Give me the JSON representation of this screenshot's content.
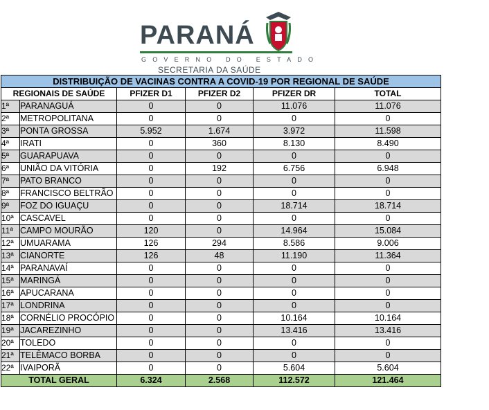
{
  "header": {
    "logo_word": "PARANÁ",
    "logo_gov": "GOVERNO DO ESTADO",
    "logo_secretaria": "SECRETARIA DA SAÚDE"
  },
  "table": {
    "title": "DISTRIBUIÇÃO DE VACINAS CONTRA A COVID-19 POR REGIONAL DE SAÚDE",
    "columns": [
      "REGIONAIS DE SAÚDE",
      "PFIZER D1",
      "PFIZER D2",
      "PFIZER DR",
      "TOTAL"
    ],
    "rows": [
      {
        "ord": "1ª",
        "name": "PARANAGUÁ",
        "d1": "0",
        "d2": "0",
        "dr": "11.076",
        "total": "11.076"
      },
      {
        "ord": "2ª",
        "name": "METROPOLITANA",
        "d1": "0",
        "d2": "0",
        "dr": "0",
        "total": "0"
      },
      {
        "ord": "3ª",
        "name": "PONTA GROSSA",
        "d1": "5.952",
        "d2": "1.674",
        "dr": "3.972",
        "total": "11.598"
      },
      {
        "ord": "4ª",
        "name": "IRATI",
        "d1": "0",
        "d2": "360",
        "dr": "8.130",
        "total": "8.490"
      },
      {
        "ord": "5ª",
        "name": "GUARAPUAVA",
        "d1": "0",
        "d2": "0",
        "dr": "0",
        "total": "0"
      },
      {
        "ord": "6ª",
        "name": "UNIÃO DA VITÓRIA",
        "d1": "0",
        "d2": "192",
        "dr": "6.756",
        "total": "6.948"
      },
      {
        "ord": "7ª",
        "name": "PATO BRANCO",
        "d1": "0",
        "d2": "0",
        "dr": "0",
        "total": "0"
      },
      {
        "ord": "8ª",
        "name": "FRANCISCO BELTRÃO",
        "d1": "0",
        "d2": "0",
        "dr": "0",
        "total": "0"
      },
      {
        "ord": "9ª",
        "name": "FOZ DO IGUAÇU",
        "d1": "0",
        "d2": "0",
        "dr": "18.714",
        "total": "18.714"
      },
      {
        "ord": "10ª",
        "name": "CASCAVEL",
        "d1": "0",
        "d2": "0",
        "dr": "0",
        "total": "0"
      },
      {
        "ord": "11ª",
        "name": "CAMPO MOURÃO",
        "d1": "120",
        "d2": "0",
        "dr": "14.964",
        "total": "15.084"
      },
      {
        "ord": "12ª",
        "name": "UMUARAMA",
        "d1": "126",
        "d2": "294",
        "dr": "8.586",
        "total": "9.006"
      },
      {
        "ord": "13ª",
        "name": "CIANORTE",
        "d1": "126",
        "d2": "48",
        "dr": "11.190",
        "total": "11.364"
      },
      {
        "ord": "14ª",
        "name": "PARANAVAÍ",
        "d1": "0",
        "d2": "0",
        "dr": "0",
        "total": "0"
      },
      {
        "ord": "15ª",
        "name": "MARINGÁ",
        "d1": "0",
        "d2": "0",
        "dr": "0",
        "total": "0"
      },
      {
        "ord": "16ª",
        "name": "APUCARANA",
        "d1": "0",
        "d2": "0",
        "dr": "0",
        "total": "0"
      },
      {
        "ord": "17ª",
        "name": "LONDRINA",
        "d1": "0",
        "d2": "0",
        "dr": "0",
        "total": "0"
      },
      {
        "ord": "18ª",
        "name": "CORNÉLIO PROCÓPIO",
        "d1": "0",
        "d2": "0",
        "dr": "10.164",
        "total": "10.164"
      },
      {
        "ord": "19ª",
        "name": "JACAREZINHO",
        "d1": "0",
        "d2": "0",
        "dr": "13.416",
        "total": "13.416"
      },
      {
        "ord": "20ª",
        "name": "TOLEDO",
        "d1": "0",
        "d2": "0",
        "dr": "0",
        "total": "0"
      },
      {
        "ord": "21ª",
        "name": "TELÊMACO BORBA",
        "d1": "0",
        "d2": "0",
        "dr": "0",
        "total": "0"
      },
      {
        "ord": "22ª",
        "name": "IVAIPORÃ",
        "d1": "0",
        "d2": "0",
        "dr": "5.604",
        "total": "5.604"
      }
    ],
    "total": {
      "label": "TOTAL GERAL",
      "d1": "6.324",
      "d2": "2.568",
      "dr": "112.572",
      "total": "121.464"
    }
  },
  "colors": {
    "title_bg": "#9dc3e6",
    "odd_row_bg": "#d9d9d9",
    "total_bg": "#a9d08e",
    "logo_text": "#3d4a52",
    "logo_green": "#2f7d3b"
  }
}
